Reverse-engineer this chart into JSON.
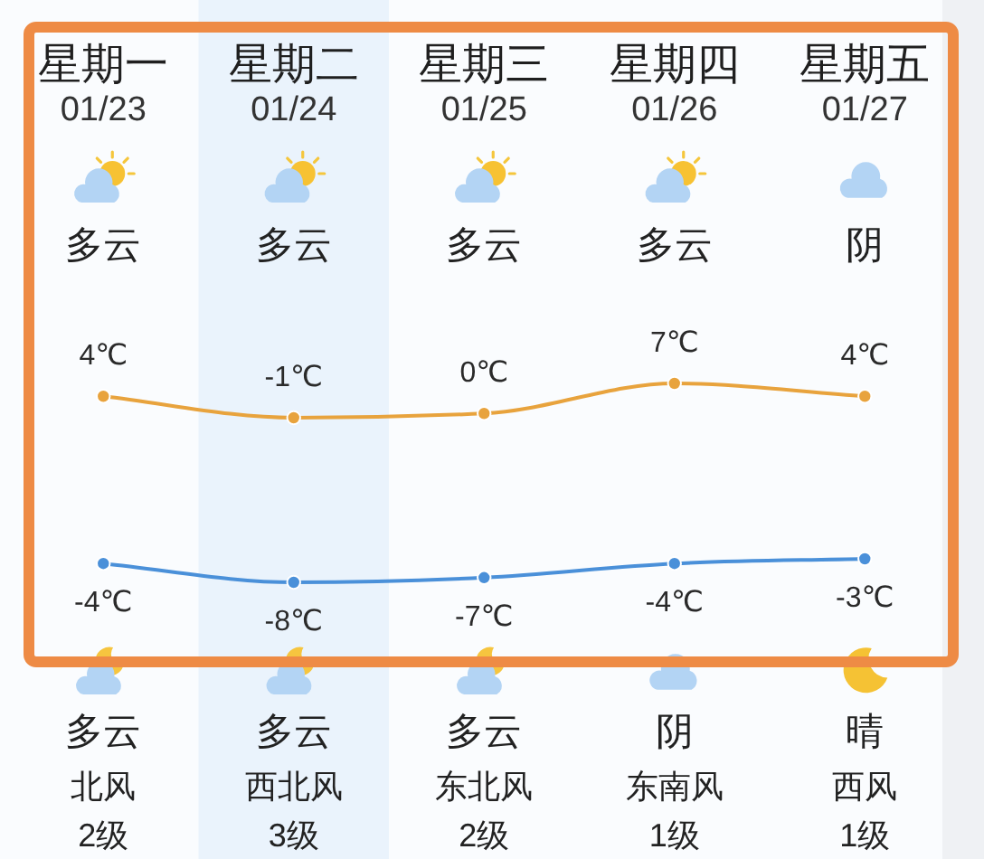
{
  "chart_data": [
    {
      "type": "line",
      "categories": [
        "星期一\n01/23",
        "星期二\n01/24",
        "星期三\n01/25",
        "星期四\n01/26",
        "星期五\n01/27"
      ],
      "series": [
        {
          "color": "#e8a33d",
          "values": [
            4,
            -1,
            0,
            7,
            4
          ],
          "value_labels": [
            "4℃",
            "-1℃",
            "0℃",
            "7℃",
            "4℃"
          ]
        }
      ],
      "marker": "circle",
      "bands": [
        {
          "axis": "x",
          "from": "星期二\n01/24",
          "to": "星期二\n01/24",
          "color": "#eaf3fc"
        }
      ],
      "annotations": [
        "多云",
        "多云",
        "多云",
        "多云",
        "阴"
      ]
    },
    {
      "type": "line",
      "categories": [
        "星期一\n01/23",
        "星期二\n01/24",
        "星期三\n01/25",
        "星期四\n01/26",
        "星期五\n01/27"
      ],
      "tick_labels": false,
      "series": [
        {
          "color": "#4a90d9",
          "values": [
            -4,
            -8,
            -7,
            -4,
            -3
          ],
          "value_labels": [
            "-4℃",
            "-8℃",
            "-7℃",
            "-4℃",
            "-3℃"
          ]
        }
      ],
      "marker": "circle",
      "bands": [
        {
          "axis": "x",
          "from": "星期二\n01/24",
          "to": "星期二\n01/24",
          "color": "#eaf3fc"
        }
      ],
      "annotations": [
        "多云",
        "多云",
        "多云",
        "阴",
        "晴",
        "北风",
        "西北风",
        "东北风",
        "东南风",
        "西风",
        "2级",
        "3级",
        "2级",
        "1级",
        "1级"
      ]
    }
  ]
}
